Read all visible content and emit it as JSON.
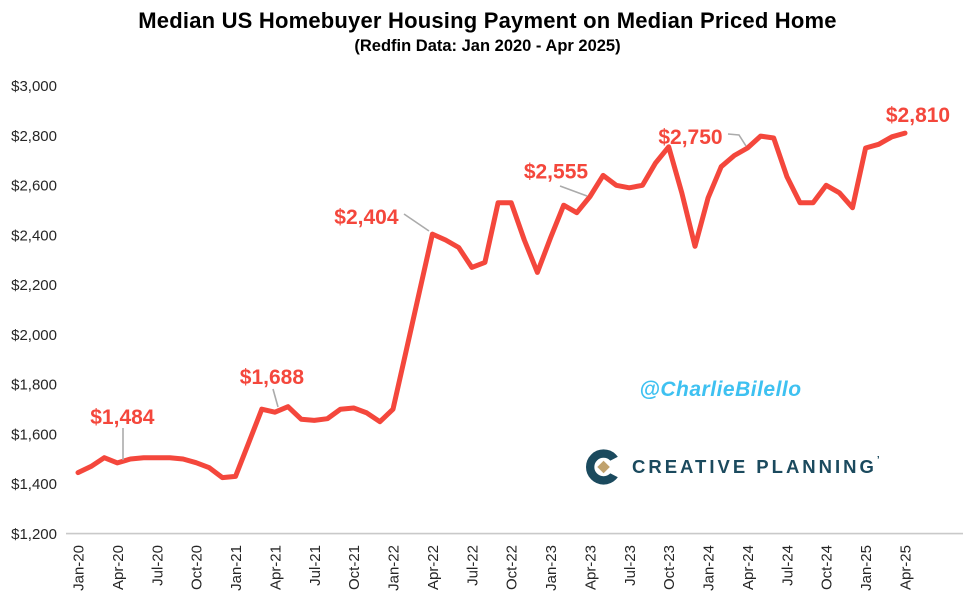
{
  "title": "Median US Homebuyer Housing Payment on Median Priced Home",
  "subtitle": "(Redfin Data: Jan 2020 - Apr 2025)",
  "watermark": "@CharlieBilello",
  "logo": {
    "text": "CREATIVE PLANNING",
    "tm": "’",
    "navy": "#1B4A5E",
    "gold": "#C0A26E"
  },
  "colors": {
    "line": "#F4473C",
    "data_label": "#F4473C",
    "leader": "#ABABAB",
    "axis_text": "#262626",
    "baseline": "#C9C9C9"
  },
  "chart_data": {
    "type": "line",
    "title": "Median US Homebuyer Housing Payment on Median Priced Home",
    "subtitle": "(Redfin Data: Jan 2020 - Apr 2025)",
    "grid": false,
    "legend": "none",
    "ylim": [
      1200,
      3000
    ],
    "y_tick_step": 200,
    "y_tick_labels": [
      "$3,000",
      "$2,800",
      "$2,600",
      "$2,400",
      "$2,200",
      "$2,000",
      "$1,800",
      "$1,600",
      "$1,400",
      "$1,200"
    ],
    "y_tick_values": [
      3000,
      2800,
      2600,
      2400,
      2200,
      2000,
      1800,
      1600,
      1400,
      1200
    ],
    "x_tick_every": 3,
    "x_tick_labels": [
      "Jan-20",
      "Apr-20",
      "Jul-20",
      "Oct-20",
      "Jan-21",
      "Apr-21",
      "Jul-21",
      "Oct-21",
      "Jan-22",
      "Apr-22",
      "Jul-22",
      "Oct-22",
      "Jan-23",
      "Apr-23",
      "Jul-23",
      "Oct-23",
      "Jan-24",
      "Apr-24",
      "Jul-24",
      "Oct-24",
      "Jan-25",
      "Apr-25"
    ],
    "months": [
      "Jan-20",
      "Feb-20",
      "Mar-20",
      "Apr-20",
      "May-20",
      "Jun-20",
      "Jul-20",
      "Aug-20",
      "Sep-20",
      "Oct-20",
      "Nov-20",
      "Dec-20",
      "Jan-21",
      "Feb-21",
      "Mar-21",
      "Apr-21",
      "May-21",
      "Jun-21",
      "Jul-21",
      "Aug-21",
      "Sep-21",
      "Oct-21",
      "Nov-21",
      "Dec-21",
      "Jan-22",
      "Feb-22",
      "Mar-22",
      "Apr-22",
      "May-22",
      "Jun-22",
      "Jul-22",
      "Aug-22",
      "Sep-22",
      "Oct-22",
      "Nov-22",
      "Dec-22",
      "Jan-23",
      "Feb-23",
      "Mar-23",
      "Apr-23",
      "May-23",
      "Jun-23",
      "Jul-23",
      "Aug-23",
      "Sep-23",
      "Oct-23",
      "Nov-23",
      "Dec-23",
      "Jan-24",
      "Feb-24",
      "Mar-24",
      "Apr-24",
      "May-24",
      "Jun-24",
      "Jul-24",
      "Aug-24",
      "Sep-24",
      "Oct-24",
      "Nov-24",
      "Dec-24",
      "Jan-25",
      "Feb-25",
      "Mar-25",
      "Apr-25"
    ],
    "values": [
      1445,
      1470,
      1505,
      1484,
      1500,
      1505,
      1505,
      1505,
      1500,
      1485,
      1465,
      1425,
      1430,
      1565,
      1700,
      1688,
      1710,
      1660,
      1655,
      1662,
      1700,
      1705,
      1685,
      1650,
      1700,
      1935,
      2170,
      2404,
      2380,
      2350,
      2270,
      2290,
      2530,
      2530,
      2380,
      2250,
      2390,
      2520,
      2490,
      2555,
      2640,
      2600,
      2590,
      2600,
      2690,
      2755,
      2570,
      2355,
      2550,
      2675,
      2720,
      2750,
      2798,
      2790,
      2635,
      2530,
      2530,
      2600,
      2570,
      2510,
      2750,
      2765,
      2795,
      2810
    ],
    "annotations": [
      {
        "label": "$1,484",
        "month": "Apr-20",
        "index": 3,
        "value": 1484
      },
      {
        "label": "$1,688",
        "month": "Apr-21",
        "index": 15,
        "value": 1688
      },
      {
        "label": "$2,404",
        "month": "Apr-22",
        "index": 27,
        "value": 2404
      },
      {
        "label": "$2,555",
        "month": "Apr-23",
        "index": 39,
        "value": 2555
      },
      {
        "label": "$2,750",
        "month": "Apr-24",
        "index": 51,
        "value": 2750
      },
      {
        "label": "$2,810",
        "month": "Apr-25",
        "index": 63,
        "value": 2810
      }
    ]
  }
}
